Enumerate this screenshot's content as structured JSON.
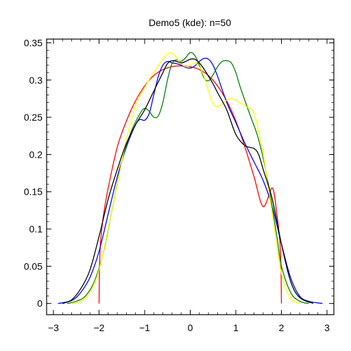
{
  "chart_data": {
    "type": "line",
    "title": "Demo5 (kde): n=50",
    "xlabel": "",
    "ylabel": "",
    "xlim": [
      -3.15,
      3.15
    ],
    "ylim": [
      -0.015,
      0.355
    ],
    "xticks": [
      -3,
      -2,
      -1,
      0,
      1,
      2,
      3
    ],
    "xtick_labels": [
      "−3",
      "−2",
      "−1",
      "0",
      "1",
      "2",
      "3"
    ],
    "yticks": [
      0,
      0.05,
      0.1,
      0.15,
      0.2,
      0.25,
      0.3,
      0.35
    ],
    "ytick_labels": [
      "0",
      "0.05",
      "0.1",
      "0.15",
      "0.2",
      "0.25",
      "0.3",
      "0.35"
    ],
    "grid": false,
    "legend": "none",
    "series": [
      {
        "color": "#ff0000",
        "x": [
          -2.0,
          -1.99,
          -1.97,
          -1.94,
          -1.9,
          -1.8,
          -1.6,
          -1.4,
          -1.2,
          -1.0,
          -0.8,
          -0.6,
          -0.4,
          -0.2,
          0.0,
          0.2,
          0.4,
          0.6,
          0.8,
          1.0,
          1.2,
          1.4,
          1.6,
          1.8,
          1.9,
          1.94,
          1.97,
          1.99,
          2.0
        ],
        "y": [
          0.0,
          0.05,
          0.08,
          0.1,
          0.12,
          0.155,
          0.21,
          0.245,
          0.272,
          0.292,
          0.306,
          0.314,
          0.318,
          0.319,
          0.318,
          0.314,
          0.306,
          0.292,
          0.272,
          0.245,
          0.21,
          0.17,
          0.13,
          0.155,
          0.12,
          0.1,
          0.08,
          0.05,
          0.0
        ]
      },
      {
        "color": "#0000ff",
        "x": [
          -2.9,
          -2.6,
          -2.4,
          -2.2,
          -2.0,
          -1.8,
          -1.6,
          -1.4,
          -1.2,
          -1.1,
          -1.0,
          -0.9,
          -0.8,
          -0.7,
          -0.6,
          -0.5,
          -0.4,
          -0.3,
          -0.2,
          -0.1,
          0.0,
          0.1,
          0.2,
          0.3,
          0.4,
          0.5,
          0.6,
          0.8,
          1.0,
          1.2,
          1.4,
          1.6,
          1.8,
          2.0,
          2.2,
          2.4,
          2.6,
          2.9
        ],
        "y": [
          0.0,
          0.004,
          0.015,
          0.035,
          0.07,
          0.12,
          0.17,
          0.21,
          0.24,
          0.247,
          0.246,
          0.255,
          0.28,
          0.305,
          0.32,
          0.325,
          0.323,
          0.322,
          0.32,
          0.317,
          0.316,
          0.319,
          0.325,
          0.329,
          0.328,
          0.32,
          0.305,
          0.27,
          0.243,
          0.215,
          0.19,
          0.165,
          0.13,
          0.08,
          0.035,
          0.01,
          0.003,
          0.0
        ]
      },
      {
        "color": "#008000",
        "x": [
          -2.7,
          -2.5,
          -2.3,
          -2.1,
          -1.9,
          -1.7,
          -1.5,
          -1.3,
          -1.1,
          -1.0,
          -0.9,
          -0.8,
          -0.7,
          -0.6,
          -0.5,
          -0.4,
          -0.3,
          -0.2,
          -0.1,
          0.0,
          0.1,
          0.2,
          0.3,
          0.4,
          0.5,
          0.6,
          0.7,
          0.8,
          0.9,
          1.0,
          1.1,
          1.3,
          1.5,
          1.7,
          1.9,
          2.0,
          2.2,
          2.4,
          2.6
        ],
        "y": [
          0.0,
          0.003,
          0.01,
          0.03,
          0.07,
          0.13,
          0.19,
          0.23,
          0.255,
          0.262,
          0.258,
          0.25,
          0.252,
          0.27,
          0.3,
          0.322,
          0.327,
          0.325,
          0.33,
          0.337,
          0.333,
          0.32,
          0.303,
          0.299,
          0.307,
          0.318,
          0.325,
          0.326,
          0.323,
          0.31,
          0.29,
          0.255,
          0.22,
          0.165,
          0.09,
          0.05,
          0.015,
          0.003,
          0.0
        ]
      },
      {
        "color": "#ffff00",
        "x": [
          -2.6,
          -2.4,
          -2.2,
          -2.0,
          -1.8,
          -1.6,
          -1.4,
          -1.2,
          -1.0,
          -0.8,
          -0.6,
          -0.5,
          -0.4,
          -0.3,
          -0.2,
          -0.1,
          0.0,
          0.1,
          0.2,
          0.3,
          0.4,
          0.5,
          0.6,
          0.7,
          0.8,
          0.9,
          1.0,
          1.2,
          1.4,
          1.6,
          1.8,
          2.0,
          2.2,
          2.4
        ],
        "y": [
          0.0,
          0.003,
          0.015,
          0.045,
          0.1,
          0.16,
          0.22,
          0.265,
          0.29,
          0.31,
          0.328,
          0.335,
          0.336,
          0.33,
          0.322,
          0.318,
          0.32,
          0.323,
          0.318,
          0.305,
          0.285,
          0.268,
          0.264,
          0.268,
          0.273,
          0.275,
          0.273,
          0.265,
          0.255,
          0.2,
          0.12,
          0.04,
          0.007,
          0.0
        ]
      },
      {
        "color": "#000000",
        "x": [
          -2.8,
          -2.6,
          -2.4,
          -2.2,
          -2.0,
          -1.8,
          -1.6,
          -1.4,
          -1.2,
          -1.0,
          -0.8,
          -0.6,
          -0.5,
          -0.4,
          -0.3,
          -0.2,
          -0.1,
          0.0,
          0.1,
          0.2,
          0.3,
          0.4,
          0.5,
          0.6,
          0.8,
          1.0,
          1.2,
          1.4,
          1.5,
          1.6,
          1.8,
          2.0,
          2.2,
          2.4,
          2.7
        ],
        "y": [
          0.0,
          0.005,
          0.02,
          0.045,
          0.09,
          0.14,
          0.18,
          0.215,
          0.24,
          0.26,
          0.285,
          0.31,
          0.322,
          0.326,
          0.325,
          0.323,
          0.325,
          0.328,
          0.328,
          0.323,
          0.315,
          0.305,
          0.295,
          0.283,
          0.26,
          0.227,
          0.212,
          0.208,
          0.2,
          0.18,
          0.14,
          0.08,
          0.03,
          0.008,
          0.0
        ]
      }
    ]
  }
}
